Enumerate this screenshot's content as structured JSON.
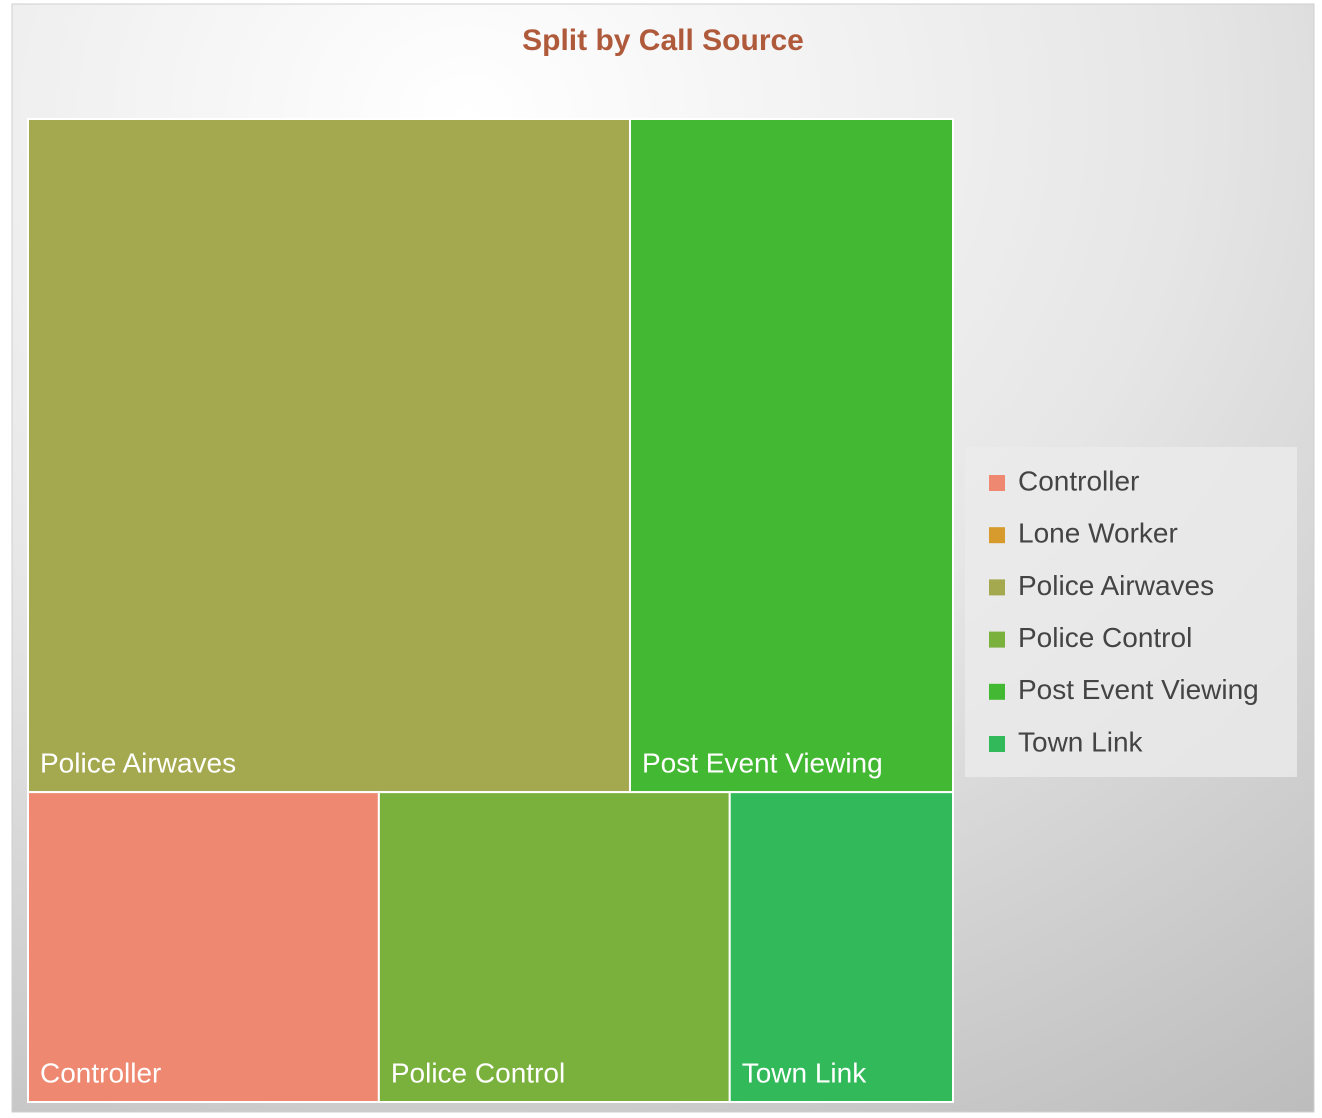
{
  "chart_data": {
    "type": "treemap",
    "title": "Split by Call Source",
    "categories": [
      "Controller",
      "Lone Worker",
      "Police Airwaves",
      "Police Control",
      "Post Event Viewing",
      "Town Link"
    ],
    "values": [
      11,
      0,
      41,
      11,
      22,
      7
    ],
    "colors": [
      "#ee8870",
      "#d69a2d",
      "#a4a84e",
      "#7ab13d",
      "#43b832",
      "#31b95a"
    ],
    "legend": "right"
  }
}
